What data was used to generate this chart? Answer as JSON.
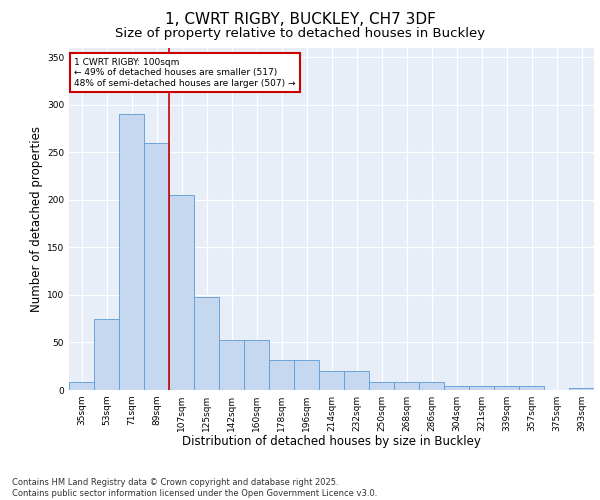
{
  "title_line1": "1, CWRT RIGBY, BUCKLEY, CH7 3DF",
  "title_line2": "Size of property relative to detached houses in Buckley",
  "xlabel": "Distribution of detached houses by size in Buckley",
  "ylabel": "Number of detached properties",
  "categories": [
    "35sqm",
    "53sqm",
    "71sqm",
    "89sqm",
    "107sqm",
    "125sqm",
    "142sqm",
    "160sqm",
    "178sqm",
    "196sqm",
    "214sqm",
    "232sqm",
    "250sqm",
    "268sqm",
    "286sqm",
    "304sqm",
    "321sqm",
    "339sqm",
    "357sqm",
    "375sqm",
    "393sqm"
  ],
  "values": [
    8,
    75,
    290,
    260,
    205,
    98,
    53,
    53,
    32,
    32,
    20,
    20,
    8,
    8,
    8,
    4,
    4,
    4,
    4,
    0,
    2
  ],
  "bar_color": "#c5d8f0",
  "bar_edge_color": "#5b9bd5",
  "background_color": "#e8eef8",
  "grid_color": "#ffffff",
  "red_line_x": 3.5,
  "annotation_text": "1 CWRT RIGBY: 100sqm\n← 49% of detached houses are smaller (517)\n48% of semi-detached houses are larger (507) →",
  "annotation_box_color": "#ffffff",
  "annotation_box_edge": "#cc0000",
  "ylim": [
    0,
    360
  ],
  "yticks": [
    0,
    50,
    100,
    150,
    200,
    250,
    300,
    350
  ],
  "footer": "Contains HM Land Registry data © Crown copyright and database right 2025.\nContains public sector information licensed under the Open Government Licence v3.0.",
  "title_fontsize": 11,
  "subtitle_fontsize": 9.5,
  "tick_fontsize": 6.5,
  "label_fontsize": 8.5,
  "footer_fontsize": 6,
  "annot_fontsize": 6.5
}
